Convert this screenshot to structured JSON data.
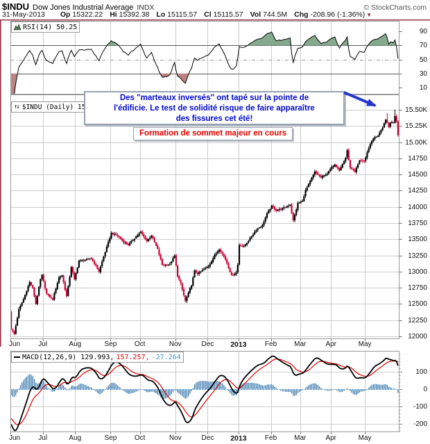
{
  "header": {
    "symbol": "$INDU",
    "name": "Dow Jones Industrial Average",
    "exchange": "INDX",
    "copyright": "© StockCharts.com",
    "date": "31-May-2013",
    "fields": [
      {
        "label": "Op",
        "value": "15322.22"
      },
      {
        "label": "Hi",
        "value": "15392.38"
      },
      {
        "label": "Lo",
        "value": "15115.57"
      },
      {
        "label": "Cl",
        "value": "15115.57"
      },
      {
        "label": "Vol",
        "value": "744.5M"
      },
      {
        "label": "Chg",
        "value": "-208.96 (-1.36%)"
      }
    ],
    "chg_icon": "▼"
  },
  "panels": {
    "rsi": {
      "label": "RSI(14) 50.25"
    },
    "price": {
      "icon": "↑↓",
      "label": "$INDU (Daily) 15115.57"
    },
    "macd": {
      "label_black": "MACD(12,26,9) 129.993,",
      "value_signal": "157.257,",
      "value_hist": "-27.264"
    }
  },
  "annotations": {
    "blue_text": "Des \"marteaux inversés\" ont tapé sur la pointe de\nl'édificie. Le test de solidité risque de faire apparaître\ndes fissures cet été!",
    "red_text": "Formation de sommet majeur en cours"
  },
  "colors": {
    "frame_maroon": "#993344",
    "grid": "#CCCCCC",
    "panel_border": "#999999",
    "candle_up": "#000000",
    "candle_down": "#CC0033",
    "macd_line": "#000000",
    "signal_line": "#E00000",
    "histogram": "#4682B4",
    "zero_dotted": "#69A3D8",
    "rsi_line": "#000000",
    "rsi_over_fill": "#84A98C",
    "rsi_under_fill": "#BC8383",
    "annotation_blue": "#0008D0",
    "annotation_red": "#E00000",
    "arrow_blue": "#2438CC"
  },
  "chart_data": {
    "type": "candlestick",
    "symbol": "$INDU",
    "timeframe": "daily",
    "title": "Dow Jones Industrial Average",
    "total_days": 252,
    "x_months": [
      {
        "label": "Jun",
        "day": 0
      },
      {
        "label": "Jul",
        "day": 21
      },
      {
        "label": "Aug",
        "day": 42
      },
      {
        "label": "Sep",
        "day": 65
      },
      {
        "label": "Oct",
        "day": 84
      },
      {
        "label": "Nov",
        "day": 107
      },
      {
        "label": "Dec",
        "day": 128
      },
      {
        "label": "2013",
        "day": 148,
        "bold": true
      },
      {
        "label": "Feb",
        "day": 169
      },
      {
        "label": "Mar",
        "day": 188
      },
      {
        "label": "Apr",
        "day": 208
      },
      {
        "label": "May",
        "day": 230
      }
    ],
    "price_axis": {
      "range": [
        11957,
        15736
      ],
      "grid_step": 250,
      "ticks": [
        {
          "label": "15.50K",
          "value": 15500
        },
        {
          "label": "15.25K",
          "value": 15250
        },
        {
          "label": "15.00K",
          "value": 15000
        },
        {
          "label": "14750",
          "value": 14750
        },
        {
          "label": "14500",
          "value": 14500
        },
        {
          "label": "14250",
          "value": 14250
        },
        {
          "label": "14000",
          "value": 14000
        },
        {
          "label": "13750",
          "value": 13750
        },
        {
          "label": "13500",
          "value": 13500
        },
        {
          "label": "13250",
          "value": 13250
        },
        {
          "label": "13000",
          "value": 13000
        },
        {
          "label": "12750",
          "value": 12750
        },
        {
          "label": "12500",
          "value": 12500
        },
        {
          "label": "12250",
          "value": 12250
        },
        {
          "label": "12000",
          "value": 12000
        }
      ]
    },
    "warmup_anchors": [
      [
        -25,
        13228
      ],
      [
        -18,
        13050
      ],
      [
        -12,
        12721
      ],
      [
        -6,
        12530
      ],
      [
        -2,
        12454
      ],
      [
        -1,
        12393
      ]
    ],
    "price_anchors": [
      [
        0,
        12119
      ],
      [
        2,
        12035
      ],
      [
        5,
        12414
      ],
      [
        8,
        12573
      ],
      [
        12,
        12837
      ],
      [
        14,
        12741
      ],
      [
        16,
        12502
      ],
      [
        19,
        12880
      ],
      [
        20,
        12943
      ],
      [
        23,
        12653
      ],
      [
        27,
        12573
      ],
      [
        31,
        12908
      ],
      [
        33,
        12943
      ],
      [
        36,
        12617
      ],
      [
        39,
        13076
      ],
      [
        41,
        12878
      ],
      [
        44,
        13168
      ],
      [
        48,
        13175
      ],
      [
        52,
        13203
      ],
      [
        57,
        13001
      ],
      [
        61,
        13306
      ],
      [
        65,
        13593
      ],
      [
        69,
        13553
      ],
      [
        73,
        13457
      ],
      [
        76,
        13413
      ],
      [
        80,
        13515
      ],
      [
        84,
        13610
      ],
      [
        88,
        13474
      ],
      [
        91,
        13557
      ],
      [
        95,
        13345
      ],
      [
        98,
        13103
      ],
      [
        103,
        13112
      ],
      [
        106,
        13245
      ],
      [
        108,
        12933
      ],
      [
        110,
        12815
      ],
      [
        113,
        12542
      ],
      [
        117,
        12795
      ],
      [
        119,
        13010
      ],
      [
        121,
        12967
      ],
      [
        125,
        13034
      ],
      [
        128,
        13082
      ],
      [
        132,
        13248
      ],
      [
        135,
        13351
      ],
      [
        139,
        13191
      ],
      [
        143,
        12938
      ],
      [
        146,
        12985
      ],
      [
        147,
        13104
      ],
      [
        148,
        13413
      ],
      [
        151,
        13389
      ],
      [
        155,
        13511
      ],
      [
        159,
        13649
      ],
      [
        163,
        13712
      ],
      [
        166,
        13896
      ],
      [
        169,
        14010
      ],
      [
        172,
        13944
      ],
      [
        176,
        13973
      ],
      [
        181,
        14036
      ],
      [
        183,
        13784
      ],
      [
        186,
        14054
      ],
      [
        189,
        14090
      ],
      [
        191,
        14254
      ],
      [
        194,
        14397
      ],
      [
        197,
        14539
      ],
      [
        201,
        14455
      ],
      [
        205,
        14512
      ],
      [
        207,
        14578
      ],
      [
        210,
        14662
      ],
      [
        213,
        14565
      ],
      [
        217,
        14760
      ],
      [
        218,
        14865
      ],
      [
        220,
        14599
      ],
      [
        223,
        14537
      ],
      [
        226,
        14719
      ],
      [
        229,
        14700
      ],
      [
        231,
        14839
      ],
      [
        233,
        14974
      ],
      [
        235,
        15056
      ],
      [
        238,
        15105
      ],
      [
        241,
        15215
      ],
      [
        243,
        15354
      ],
      [
        245,
        15233
      ],
      [
        246,
        15307
      ],
      [
        248,
        15303
      ],
      [
        249,
        15409
      ],
      [
        250,
        15324
      ],
      [
        251,
        15116
      ]
    ],
    "indicators": {
      "rsi": {
        "period": 14,
        "last": 50.25,
        "overbought": 70,
        "oversold": 30,
        "midline": 50,
        "range": [
          0,
          105
        ],
        "ticks": [
          90,
          70,
          50,
          30,
          10
        ]
      },
      "macd": {
        "fast": 12,
        "slow": 26,
        "signal": 9,
        "last_macd": 129.993,
        "last_signal": 157.257,
        "last_hist": -27.264,
        "range": [
          -248,
          220
        ],
        "ticks": [
          100,
          0,
          -100,
          -200
        ]
      }
    },
    "last_bar": {
      "date": "31-May-2013",
      "open": 15322.22,
      "high": 15392.38,
      "low": 15115.57,
      "close": 15115.57,
      "volume": "744.5M",
      "change": -208.96,
      "change_pct": -1.36
    }
  }
}
